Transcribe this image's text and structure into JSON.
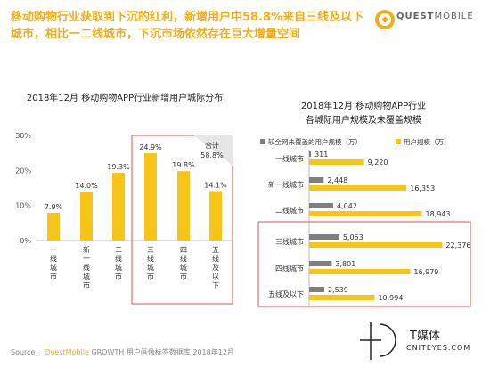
{
  "headline": "移动购物行业获取到下沉的红利，新增用户中58.8%来自三线及以下城市，相比一二线城市，下沉市场依然存在巨大增量空间",
  "logo": {
    "brand_a": "QUEST",
    "brand_b": "MOBILE"
  },
  "source": {
    "label": "Source：",
    "brand": "QuestMobile",
    "rest": " GROWTH 用户画像标签数据库 2018年12月"
  },
  "media_logo": {
    "cn": "T媒体",
    "en": "CNITEYES.COM"
  },
  "colors": {
    "accent": "#f5c518",
    "gray": "#7f7f7f",
    "highlight_border": "#d9534f"
  },
  "chart_data": [
    {
      "type": "bar",
      "title": "2018年12月 移动购物APP行业新增用户城际分布",
      "categories": [
        "一线城市",
        "新一线城市",
        "二线城市",
        "三线城市",
        "四线城市",
        "五线及以下"
      ],
      "values": [
        7.9,
        14.0,
        19.3,
        24.9,
        19.8,
        14.1
      ],
      "data_labels": [
        "7.9%",
        "14.0%",
        "19.3%",
        "24.9%",
        "19.8%",
        "14.1%"
      ],
      "yticks": [
        "0%",
        "10%",
        "20%",
        "30%"
      ],
      "ylim": [
        0,
        30
      ],
      "annotation": {
        "label": "合计",
        "value": "58.8%"
      },
      "highlight": [
        "三线城市",
        "四线城市",
        "五线及以下"
      ]
    },
    {
      "type": "bar",
      "orientation": "horizontal",
      "title": "2018年12月 移动购物APP行业",
      "subtitle": "各城际用户规模及未覆盖规模",
      "categories": [
        "一线城市",
        "新一线城市",
        "二线城市",
        "三线城市",
        "四线城市",
        "五线及以下"
      ],
      "series": [
        {
          "name": "较全网未覆盖的用户规模（万）",
          "color": "#7f7f7f",
          "values": [
            311,
            2448,
            4042,
            5063,
            3801,
            2539
          ],
          "labels": [
            "311",
            "2,448",
            "4,042",
            "5,063",
            "3,801",
            "2,539"
          ]
        },
        {
          "name": "用户规模（万）",
          "color": "#f5c518",
          "values": [
            9220,
            16353,
            18943,
            22376,
            16979,
            10994
          ],
          "labels": [
            "9,220",
            "16,353",
            "18,943",
            "22,376",
            "16,979",
            "10,994"
          ]
        }
      ],
      "xlim": [
        0,
        25000
      ],
      "highlight": [
        "三线城市",
        "四线城市",
        "五线及以下"
      ]
    }
  ]
}
